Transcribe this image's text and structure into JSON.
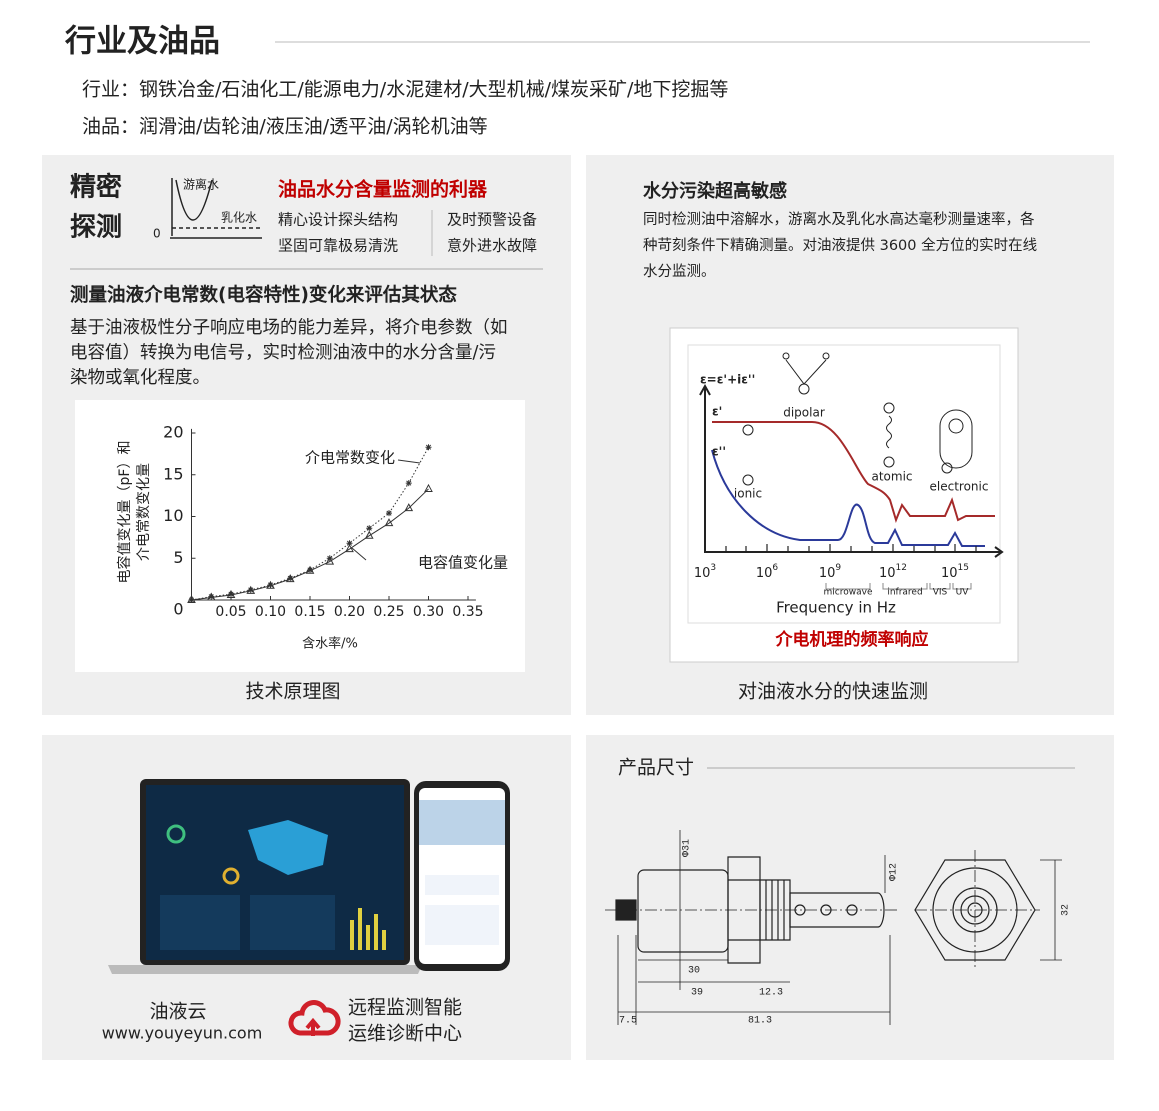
{
  "header": {
    "title": "行业及油品",
    "industry": "行业：钢铁冶金/石油化工/能源电力/水泥建材/大型机械/煤炭采矿/地下挖掘等",
    "oils": "油品：润滑油/齿轮油/液压油/透平油/涡轮机油等"
  },
  "panel1": {
    "heading": [
      "精密",
      "探测"
    ],
    "icon_labels": {
      "free_water": "游离水",
      "emulsified_water": "乳化水",
      "zero": "0"
    },
    "title": "油品水分含量监测的利器",
    "features": [
      "精心设计探头结构",
      "及时预警设备",
      "坚固可靠极易清洗",
      "意外进水故障"
    ],
    "section_title": "测量油液介电常数(电容特性)变化来评估其状态",
    "body": [
      "基于油液极性分子响应电场的能力差异，将介电参数（如",
      "电容值）转换为电信号，实时检测油液中的水分含量/污",
      "染物或氧化程度。"
    ],
    "chart": {
      "type": "line",
      "x_label": "含水率/%",
      "y_label": [
        "电容值变化量（pF）和",
        "介电常数变化量"
      ],
      "x": [
        0,
        0.025,
        0.05,
        0.075,
        0.1,
        0.125,
        0.15,
        0.175,
        0.2,
        0.225,
        0.25,
        0.275,
        0.3
      ],
      "series": [
        {
          "name": "介电常数变化",
          "marker": "asterisk",
          "line_style": "dotted",
          "values": [
            0,
            0.4,
            0.7,
            1.2,
            1.8,
            2.6,
            3.6,
            5,
            6.8,
            8.6,
            10.4,
            14,
            18.3
          ]
        },
        {
          "name": "电容值变化量",
          "marker": "triangle",
          "line_style": "solid",
          "values": [
            0,
            0.3,
            0.6,
            1.1,
            1.7,
            2.5,
            3.5,
            4.6,
            6.1,
            7.7,
            9.2,
            11,
            13.3
          ]
        }
      ],
      "color": "#333333",
      "xlim": [
        0,
        0.36
      ],
      "ylim": [
        0,
        20.5
      ],
      "xticks": [
        {
          "value": 0.05,
          "label": "0.05"
        },
        {
          "value": 0.1,
          "label": "0.10"
        },
        {
          "value": 0.15,
          "label": "0.15"
        },
        {
          "value": 0.2,
          "label": "0.20"
        },
        {
          "value": 0.25,
          "label": "0.25"
        },
        {
          "value": 0.3,
          "label": "0.30"
        },
        {
          "value": 0.35,
          "label": "0.35"
        }
      ],
      "yticks": [
        0,
        5,
        10,
        15,
        20
      ]
    },
    "caption": "技术原理图"
  },
  "panel2": {
    "title": "水分污染超高敏感",
    "body": [
      "同时检测油中溶解水，游离水及乳化水高达毫秒测量速率，各",
      "种苛刻条件下精确测量。对油液提供 3600 全方位的实时在线",
      "水分监测。"
    ],
    "figure": {
      "equation": "ε=ε'+iε''",
      "eps_real": "ε'",
      "eps_imag": "ε''",
      "mechanisms": [
        "dipolar",
        "atomic",
        "electronic",
        "ionic"
      ],
      "x_ticks": [
        {
          "base": "10",
          "exp": "3"
        },
        {
          "base": "10",
          "exp": "6"
        },
        {
          "base": "10",
          "exp": "9"
        },
        {
          "base": "10",
          "exp": "12"
        },
        {
          "base": "10",
          "exp": "15"
        }
      ],
      "bands": [
        "microwave",
        "infrared",
        "VIS",
        "UV"
      ],
      "x_label": "Frequency in Hz",
      "caption": "介电机理的频率响应"
    },
    "caption": "对油液水分的快速监测"
  },
  "panel3": {
    "brand": "油液云",
    "url": "www.youyeyun.com",
    "slogan": [
      "远程监测智能",
      "运维诊断中心"
    ]
  },
  "panel4": {
    "title": "产品尺寸",
    "dimensions": [
      "Φ31",
      "Φ12",
      "30",
      "39",
      "12.3",
      "7.5",
      "81.3",
      "32"
    ]
  }
}
